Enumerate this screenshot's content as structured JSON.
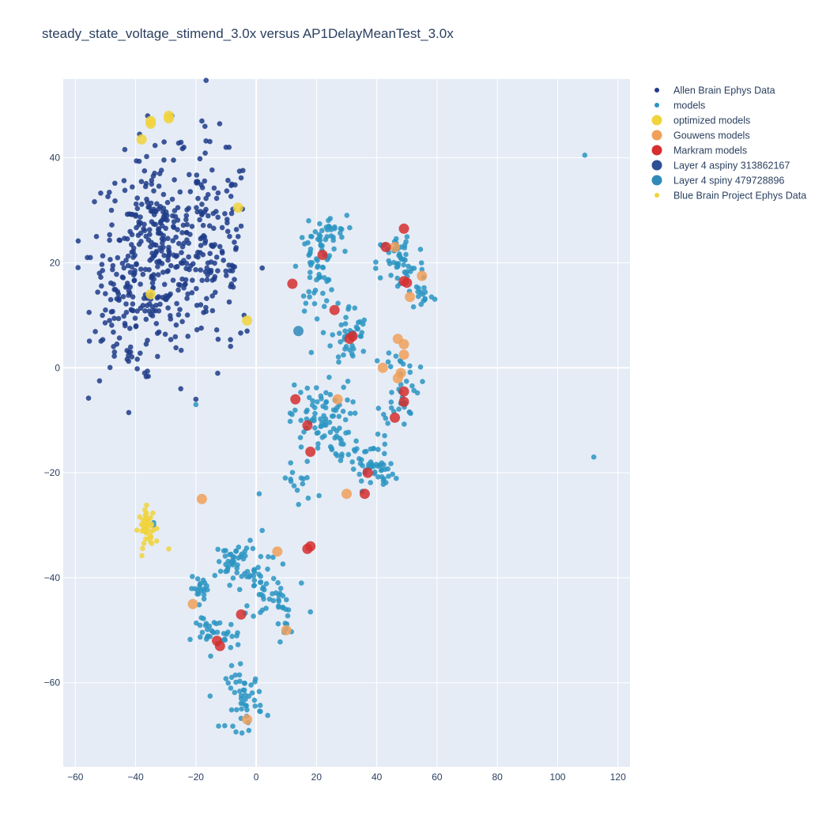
{
  "chart_data": {
    "type": "scatter",
    "title": "steady_state_voltage_stimend_3.0x versus AP1DelayMeanTest_3.0x",
    "xlabel": "",
    "ylabel": "",
    "xlim": [
      -64,
      124
    ],
    "ylim": [
      -76,
      55
    ],
    "x_ticks": [
      -60,
      -40,
      -20,
      0,
      20,
      40,
      60,
      80,
      100,
      120
    ],
    "y_ticks": [
      -60,
      -40,
      -20,
      0,
      20,
      40
    ],
    "x_tick_labels": [
      "−60",
      "−40",
      "−20",
      "0",
      "20",
      "40",
      "60",
      "80",
      "100",
      "120"
    ],
    "y_tick_labels": [
      "−60",
      "−40",
      "−20",
      "0",
      "20",
      "40"
    ],
    "grid": true,
    "legend_position": "top-right outside",
    "background": "#e5ecf6",
    "series": [
      {
        "name": "Allen Brain Ephys Data",
        "color": "#1f3c88",
        "marker_size": "small",
        "clusters": [
          {
            "x": -33,
            "y": 22,
            "sx": 9,
            "sy": 9,
            "n": 330
          },
          {
            "x": -14,
            "y": 22,
            "sx": 6,
            "sy": 10,
            "n": 110
          },
          {
            "x": -42,
            "y": 12,
            "sx": 6,
            "sy": 7,
            "n": 60
          }
        ],
        "points": [
          {
            "x": -55,
            "y": 21
          },
          {
            "x": -56,
            "y": 21
          },
          {
            "x": -53,
            "y": 25
          },
          {
            "x": -52,
            "y": 18
          },
          {
            "x": -48,
            "y": 30
          },
          {
            "x": -50,
            "y": 11
          },
          {
            "x": -51,
            "y": 10
          },
          {
            "x": -47,
            "y": 3
          },
          {
            "x": -37,
            "y": -1
          },
          {
            "x": -25,
            "y": -4
          },
          {
            "x": -20,
            "y": -6
          },
          {
            "x": -24,
            "y": 42
          },
          {
            "x": -17,
            "y": 46
          },
          {
            "x": -18,
            "y": 47
          },
          {
            "x": -28,
            "y": 48
          },
          {
            "x": -36,
            "y": 48
          },
          {
            "x": -10,
            "y": 42
          },
          {
            "x": -9,
            "y": 42
          },
          {
            "x": 2,
            "y": 19
          },
          {
            "x": -6,
            "y": 25
          },
          {
            "x": -5,
            "y": 27
          },
          {
            "x": -4,
            "y": 10
          },
          {
            "x": -3,
            "y": 7
          }
        ]
      },
      {
        "name": "models",
        "color": "#2b95c2",
        "marker_size": "small",
        "clusters": [
          {
            "x": 20,
            "y": 19,
            "sx": 3,
            "sy": 4,
            "n": 60
          },
          {
            "x": 24,
            "y": 26,
            "sx": 3,
            "sy": 1.5,
            "n": 25
          },
          {
            "x": 48,
            "y": 20,
            "sx": 4,
            "sy": 3,
            "n": 55
          },
          {
            "x": 55,
            "y": 14,
            "sx": 2,
            "sy": 1.5,
            "n": 15
          },
          {
            "x": 31,
            "y": 6,
            "sx": 3,
            "sy": 3,
            "n": 45
          },
          {
            "x": 48,
            "y": -3,
            "sx": 3,
            "sy": 4,
            "n": 40
          },
          {
            "x": 21,
            "y": -10,
            "sx": 5,
            "sy": 3.5,
            "n": 85
          },
          {
            "x": 37,
            "y": -18,
            "sx": 4,
            "sy": 2.5,
            "n": 45
          },
          {
            "x": 43,
            "y": -21,
            "sx": 2,
            "sy": 1.5,
            "n": 15
          },
          {
            "x": 14,
            "y": -22,
            "sx": 3,
            "sy": 2.5,
            "n": 15
          },
          {
            "x": -7,
            "y": -37,
            "sx": 3,
            "sy": 2,
            "n": 45
          },
          {
            "x": 1,
            "y": -41,
            "sx": 3,
            "sy": 3,
            "n": 35
          },
          {
            "x": 7,
            "y": -44,
            "sx": 2,
            "sy": 2,
            "n": 15
          },
          {
            "x": -18,
            "y": -42,
            "sx": 2,
            "sy": 1,
            "n": 20
          },
          {
            "x": -13,
            "y": -51,
            "sx": 4,
            "sy": 1.5,
            "n": 30
          },
          {
            "x": -17,
            "y": -49,
            "sx": 1,
            "sy": 1,
            "n": 6
          },
          {
            "x": 10,
            "y": -48,
            "sx": 1.5,
            "sy": 1.5,
            "n": 10
          },
          {
            "x": -4,
            "y": -63,
            "sx": 3,
            "sy": 3,
            "n": 50
          }
        ],
        "points": [
          {
            "x": 109,
            "y": 40.5
          },
          {
            "x": 112,
            "y": -17
          },
          {
            "x": -20,
            "y": -7
          },
          {
            "x": -34,
            "y": -29.5
          },
          {
            "x": -34,
            "y": -30
          },
          {
            "x": 18,
            "y": -46.5
          },
          {
            "x": 15,
            "y": -41
          },
          {
            "x": 2,
            "y": -31
          },
          {
            "x": 1,
            "y": -24
          }
        ]
      },
      {
        "name": "optimized models",
        "color": "#f1d33c",
        "marker_size": "large",
        "points": [
          {
            "x": -35,
            "y": 46.5
          },
          {
            "x": -35,
            "y": 47
          },
          {
            "x": -29,
            "y": 48
          },
          {
            "x": -29,
            "y": 47.5
          },
          {
            "x": -38,
            "y": 43.5
          },
          {
            "x": -6,
            "y": 30.5
          },
          {
            "x": -35,
            "y": 14
          },
          {
            "x": -3,
            "y": 9
          }
        ]
      },
      {
        "name": "Gouwens models",
        "color": "#f0a05a",
        "marker_size": "large",
        "points": [
          {
            "x": 46,
            "y": 23
          },
          {
            "x": 55,
            "y": 17.5
          },
          {
            "x": 51,
            "y": 13.5
          },
          {
            "x": 47,
            "y": 5.5
          },
          {
            "x": 49,
            "y": 4.5
          },
          {
            "x": 49,
            "y": 2.5
          },
          {
            "x": 42,
            "y": 0
          },
          {
            "x": 48,
            "y": -1
          },
          {
            "x": 47,
            "y": -2
          },
          {
            "x": 27,
            "y": -6
          },
          {
            "x": 30,
            "y": -24
          },
          {
            "x": -18,
            "y": -25
          },
          {
            "x": 7,
            "y": -35
          },
          {
            "x": -21,
            "y": -45
          },
          {
            "x": 10,
            "y": -50
          },
          {
            "x": -3,
            "y": -67
          }
        ]
      },
      {
        "name": "Markram models",
        "color": "#d62f2f",
        "marker_size": "large",
        "points": [
          {
            "x": 49,
            "y": 26.5
          },
          {
            "x": 43,
            "y": 23
          },
          {
            "x": 22,
            "y": 21.5
          },
          {
            "x": 49,
            "y": 16.5
          },
          {
            "x": 50,
            "y": 16.2
          },
          {
            "x": 12,
            "y": 16
          },
          {
            "x": 26,
            "y": 11
          },
          {
            "x": 32,
            "y": 6
          },
          {
            "x": 31,
            "y": 5.5
          },
          {
            "x": 49,
            "y": -4.5
          },
          {
            "x": 49,
            "y": -6.5
          },
          {
            "x": 13,
            "y": -6
          },
          {
            "x": 46,
            "y": -9.5
          },
          {
            "x": 17,
            "y": -11
          },
          {
            "x": 18,
            "y": -16
          },
          {
            "x": 37,
            "y": -20
          },
          {
            "x": 36,
            "y": -24
          },
          {
            "x": 18,
            "y": -34
          },
          {
            "x": 17,
            "y": -34.5
          },
          {
            "x": -5,
            "y": -47
          },
          {
            "x": -13,
            "y": -52
          },
          {
            "x": -12,
            "y": -53
          }
        ]
      },
      {
        "name": "Layer 4 aspiny 313862167",
        "color": "#2f4f94",
        "marker_size": "large",
        "points": []
      },
      {
        "name": "Layer 4 spiny 479728896",
        "color": "#2f8ab8",
        "marker_size": "large",
        "points": [
          {
            "x": 14,
            "y": 7
          }
        ]
      },
      {
        "name": "Blue Brain Project Ephys Data",
        "color": "#f1d33c",
        "marker_size": "small",
        "clusters": [
          {
            "x": -36,
            "y": -30.5,
            "sx": 1.5,
            "sy": 1.8,
            "n": 45
          }
        ],
        "points": [
          {
            "x": -29,
            "y": -34.5
          },
          {
            "x": -33,
            "y": -33
          }
        ]
      }
    ]
  }
}
